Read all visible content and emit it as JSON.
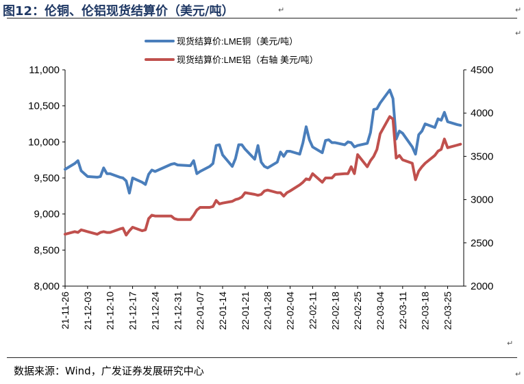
{
  "figure": {
    "title": "图12：伦铜、伦铝现货结算价（美元/吨）",
    "source": "数据来源：Wind，广发证券发展研究中心",
    "return_mark": "↵"
  },
  "chart_data": {
    "type": "line",
    "grid": false,
    "legend_position": "top-center",
    "x_tick_labels": [
      "21-11-26",
      "21-12-03",
      "21-12-10",
      "21-12-17",
      "21-12-24",
      "21-12-31",
      "22-01-07",
      "22-01-14",
      "22-01-21",
      "22-01-28",
      "22-02-04",
      "22-02-11",
      "22-02-18",
      "22-02-25",
      "22-03-04",
      "22-03-11",
      "22-03-18",
      "22-03-25"
    ],
    "y_left": {
      "range": [
        8000,
        11000
      ],
      "tick_labels": [
        "11,000",
        "10,500",
        "10,000",
        "9,500",
        "9,000",
        "8,500",
        "8,000"
      ],
      "ticks": [
        11000,
        10500,
        10000,
        9500,
        9000,
        8500,
        8000
      ]
    },
    "y_right": {
      "range": [
        2000,
        4500
      ],
      "tick_labels": [
        "4500",
        "4000",
        "3500",
        "3000",
        "2500",
        "2000"
      ],
      "ticks": [
        4500,
        4000,
        3500,
        3000,
        2500,
        2000
      ]
    },
    "series": [
      {
        "name": "现货结算价:LME铜（美元/吨）",
        "axis": "left",
        "color": "#4a7ebb",
        "points": [
          [
            "2021-11-26",
            9620
          ],
          [
            "2021-11-29",
            9700
          ],
          [
            "2021-11-30",
            9740
          ],
          [
            "2021-12-01",
            9600
          ],
          [
            "2021-12-02",
            9560
          ],
          [
            "2021-12-03",
            9520
          ],
          [
            "2021-12-06",
            9510
          ],
          [
            "2021-12-07",
            9520
          ],
          [
            "2021-12-08",
            9640
          ],
          [
            "2021-12-09",
            9560
          ],
          [
            "2021-12-10",
            9560
          ],
          [
            "2021-12-13",
            9510
          ],
          [
            "2021-12-14",
            9500
          ],
          [
            "2021-12-15",
            9460
          ],
          [
            "2021-12-16",
            9290
          ],
          [
            "2021-12-17",
            9500
          ],
          [
            "2021-12-20",
            9440
          ],
          [
            "2021-12-21",
            9410
          ],
          [
            "2021-12-22",
            9550
          ],
          [
            "2021-12-23",
            9610
          ],
          [
            "2021-12-24",
            9590
          ],
          [
            "2021-12-29",
            9690
          ],
          [
            "2021-12-30",
            9700
          ],
          [
            "2021-12-31",
            9680
          ],
          [
            "2022-01-04",
            9670
          ],
          [
            "2022-01-05",
            9740
          ],
          [
            "2022-01-06",
            9560
          ],
          [
            "2022-01-07",
            9590
          ],
          [
            "2022-01-10",
            9660
          ],
          [
            "2022-01-11",
            9700
          ],
          [
            "2022-01-12",
            9950
          ],
          [
            "2022-01-13",
            9960
          ],
          [
            "2022-01-14",
            9820
          ],
          [
            "2022-01-17",
            9660
          ],
          [
            "2022-01-18",
            9770
          ],
          [
            "2022-01-19",
            9960
          ],
          [
            "2022-01-20",
            9960
          ],
          [
            "2022-01-21",
            9900
          ],
          [
            "2022-01-24",
            9760
          ],
          [
            "2022-01-25",
            9950
          ],
          [
            "2022-01-26",
            9720
          ],
          [
            "2022-01-27",
            9660
          ],
          [
            "2022-01-28",
            9640
          ],
          [
            "2022-01-31",
            9720
          ],
          [
            "2022-02-01",
            9860
          ],
          [
            "2022-02-02",
            9800
          ],
          [
            "2022-02-03",
            9870
          ],
          [
            "2022-02-04",
            9870
          ],
          [
            "2022-02-07",
            9830
          ],
          [
            "2022-02-08",
            9990
          ],
          [
            "2022-02-09",
            10210
          ],
          [
            "2022-02-10",
            10030
          ],
          [
            "2022-02-11",
            9930
          ],
          [
            "2022-02-14",
            9850
          ],
          [
            "2022-02-15",
            10020
          ],
          [
            "2022-02-16",
            10030
          ],
          [
            "2022-02-17",
            9990
          ],
          [
            "2022-02-18",
            9990
          ],
          [
            "2022-02-21",
            9960
          ],
          [
            "2022-02-22",
            10000
          ],
          [
            "2022-02-23",
            9990
          ],
          [
            "2022-02-24",
            9930
          ],
          [
            "2022-02-25",
            9950
          ],
          [
            "2022-02-28",
            9980
          ],
          [
            "2022-03-01",
            10130
          ],
          [
            "2022-03-02",
            10450
          ],
          [
            "2022-03-03",
            10460
          ],
          [
            "2022-03-04",
            10540
          ],
          [
            "2022-03-07",
            10720
          ],
          [
            "2022-03-08",
            10600
          ],
          [
            "2022-03-09",
            10040
          ],
          [
            "2022-03-10",
            10150
          ],
          [
            "2022-03-11",
            10120
          ],
          [
            "2022-03-14",
            9930
          ],
          [
            "2022-03-15",
            9830
          ],
          [
            "2022-03-16",
            10100
          ],
          [
            "2022-03-17",
            10150
          ],
          [
            "2022-03-18",
            10250
          ],
          [
            "2022-03-21",
            10200
          ],
          [
            "2022-03-22",
            10320
          ],
          [
            "2022-03-23",
            10300
          ],
          [
            "2022-03-24",
            10410
          ],
          [
            "2022-03-25",
            10280
          ],
          [
            "2022-03-28",
            10240
          ],
          [
            "2022-03-29",
            10230
          ]
        ]
      },
      {
        "name": "现货结算价:LME铝（右轴 美元/吨）",
        "axis": "right",
        "color": "#c0504d",
        "points": [
          [
            "2021-11-26",
            2600
          ],
          [
            "2021-11-29",
            2630
          ],
          [
            "2021-11-30",
            2620
          ],
          [
            "2021-12-01",
            2650
          ],
          [
            "2021-12-02",
            2640
          ],
          [
            "2021-12-03",
            2630
          ],
          [
            "2021-12-06",
            2600
          ],
          [
            "2021-12-07",
            2620
          ],
          [
            "2021-12-08",
            2630
          ],
          [
            "2021-12-09",
            2620
          ],
          [
            "2021-12-10",
            2620
          ],
          [
            "2021-12-13",
            2660
          ],
          [
            "2021-12-14",
            2670
          ],
          [
            "2021-12-15",
            2590
          ],
          [
            "2021-12-16",
            2640
          ],
          [
            "2021-12-17",
            2680
          ],
          [
            "2021-12-20",
            2640
          ],
          [
            "2021-12-21",
            2650
          ],
          [
            "2021-12-22",
            2780
          ],
          [
            "2021-12-23",
            2820
          ],
          [
            "2021-12-24",
            2810
          ],
          [
            "2021-12-29",
            2810
          ],
          [
            "2021-12-30",
            2780
          ],
          [
            "2021-12-31",
            2770
          ],
          [
            "2022-01-04",
            2770
          ],
          [
            "2022-01-05",
            2820
          ],
          [
            "2022-01-06",
            2880
          ],
          [
            "2022-01-07",
            2910
          ],
          [
            "2022-01-10",
            2910
          ],
          [
            "2022-01-11",
            2920
          ],
          [
            "2022-01-12",
            2990
          ],
          [
            "2022-01-13",
            2950
          ],
          [
            "2022-01-14",
            2960
          ],
          [
            "2022-01-17",
            2980
          ],
          [
            "2022-01-18",
            3000
          ],
          [
            "2022-01-19",
            3010
          ],
          [
            "2022-01-20",
            3030
          ],
          [
            "2022-01-21",
            3080
          ],
          [
            "2022-01-24",
            3060
          ],
          [
            "2022-01-25",
            3050
          ],
          [
            "2022-01-26",
            3060
          ],
          [
            "2022-01-27",
            3100
          ],
          [
            "2022-01-28",
            3110
          ],
          [
            "2022-01-31",
            3080
          ],
          [
            "2022-02-01",
            3080
          ],
          [
            "2022-02-02",
            3040
          ],
          [
            "2022-02-03",
            3080
          ],
          [
            "2022-02-04",
            3100
          ],
          [
            "2022-02-07",
            3170
          ],
          [
            "2022-02-08",
            3200
          ],
          [
            "2022-02-09",
            3240
          ],
          [
            "2022-02-10",
            3230
          ],
          [
            "2022-02-11",
            3300
          ],
          [
            "2022-02-14",
            3200
          ],
          [
            "2022-02-15",
            3250
          ],
          [
            "2022-02-16",
            3250
          ],
          [
            "2022-02-17",
            3250
          ],
          [
            "2022-02-18",
            3290
          ],
          [
            "2022-02-21",
            3300
          ],
          [
            "2022-02-22",
            3300
          ],
          [
            "2022-02-23",
            3380
          ],
          [
            "2022-02-24",
            3300
          ],
          [
            "2022-02-25",
            3520
          ],
          [
            "2022-02-28",
            3380
          ],
          [
            "2022-03-01",
            3450
          ],
          [
            "2022-03-02",
            3500
          ],
          [
            "2022-03-03",
            3580
          ],
          [
            "2022-03-04",
            3760
          ],
          [
            "2022-03-07",
            3960
          ],
          [
            "2022-03-08",
            3930
          ],
          [
            "2022-03-09",
            3480
          ],
          [
            "2022-03-10",
            3510
          ],
          [
            "2022-03-11",
            3460
          ],
          [
            "2022-03-14",
            3420
          ],
          [
            "2022-03-15",
            3230
          ],
          [
            "2022-03-16",
            3330
          ],
          [
            "2022-03-17",
            3380
          ],
          [
            "2022-03-18",
            3420
          ],
          [
            "2022-03-21",
            3510
          ],
          [
            "2022-03-22",
            3560
          ],
          [
            "2022-03-23",
            3580
          ],
          [
            "2022-03-24",
            3700
          ],
          [
            "2022-03-25",
            3600
          ],
          [
            "2022-03-28",
            3630
          ],
          [
            "2022-03-29",
            3640
          ]
        ]
      }
    ]
  }
}
